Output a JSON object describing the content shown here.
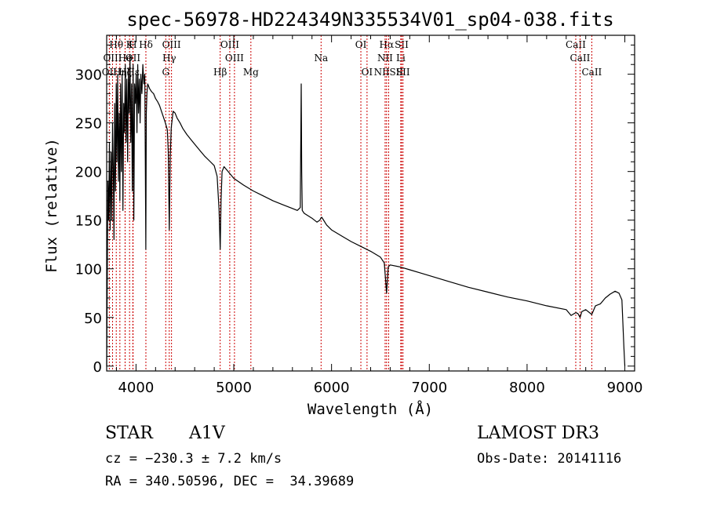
{
  "chart_data": {
    "type": "line",
    "title": "spec-56978-HD224349N335534V01_sp04-038.fits",
    "xlabel": "Wavelength (Å)",
    "ylabel": "Flux (relative)",
    "xlim": [
      3700,
      9100
    ],
    "ylim": [
      -5,
      340
    ],
    "xticks": [
      4000,
      5000,
      6000,
      7000,
      8000,
      9000
    ],
    "yticks": [
      0,
      50,
      100,
      150,
      200,
      250,
      300
    ],
    "grid": false,
    "series": [
      {
        "name": "flux",
        "x": [
          3700,
          3705,
          3712,
          3720,
          3728,
          3735,
          3745,
          3752,
          3760,
          3768,
          3775,
          3782,
          3790,
          3798,
          3805,
          3812,
          3820,
          3828,
          3835,
          3842,
          3850,
          3858,
          3866,
          3874,
          3882,
          3890,
          3898,
          3906,
          3914,
          3922,
          3930,
          3938,
          3946,
          3954,
          3962,
          3970,
          3978,
          3986,
          3994,
          4002,
          4010,
          4018,
          4026,
          4034,
          4042,
          4050,
          4060,
          4070,
          4080,
          4090,
          4100,
          4105,
          4112,
          4120,
          4140,
          4160,
          4180,
          4200,
          4220,
          4240,
          4260,
          4280,
          4300,
          4320,
          4330,
          4340,
          4350,
          4360,
          4380,
          4400,
          4420,
          4450,
          4480,
          4520,
          4560,
          4600,
          4650,
          4700,
          4750,
          4800,
          4830,
          4850,
          4861,
          4870,
          4880,
          4900,
          4950,
          5000,
          5100,
          5200,
          5300,
          5400,
          5500,
          5600,
          5650,
          5680,
          5690,
          5695,
          5700,
          5720,
          5800,
          5850,
          5880,
          5890,
          5900,
          5950,
          6000,
          6100,
          6200,
          6300,
          6400,
          6500,
          6540,
          6563,
          6580,
          6600,
          6700,
          6800,
          6900,
          7000,
          7200,
          7400,
          7600,
          7800,
          8000,
          8200,
          8400,
          8450,
          8498,
          8520,
          8542,
          8560,
          8600,
          8662,
          8700,
          8750,
          8800,
          8850,
          8900,
          8940,
          8970,
          8990,
          9000
        ],
        "values": [
          0,
          70,
          190,
          150,
          230,
          140,
          220,
          150,
          250,
          200,
          130,
          270,
          180,
          290,
          210,
          300,
          190,
          260,
          170,
          290,
          200,
          300,
          160,
          270,
          240,
          310,
          230,
          295,
          210,
          300,
          260,
          320,
          230,
          290,
          180,
          310,
          150,
          290,
          270,
          300,
          240,
          310,
          260,
          295,
          250,
          300,
          280,
          310,
          290,
          300,
          120,
          260,
          280,
          290,
          285,
          282,
          280,
          275,
          272,
          268,
          262,
          256,
          250,
          243,
          220,
          140,
          215,
          245,
          262,
          260,
          255,
          250,
          244,
          238,
          233,
          228,
          222,
          216,
          211,
          206,
          195,
          160,
          120,
          170,
          200,
          205,
          199,
          193,
          186,
          180,
          175,
          170,
          166,
          162,
          160,
          163,
          290,
          200,
          160,
          157,
          152,
          148,
          150,
          152,
          153,
          145,
          140,
          134,
          128,
          123,
          118,
          112,
          106,
          75,
          102,
          104,
          102,
          99,
          96,
          93,
          87,
          81,
          76,
          71,
          67,
          62,
          58,
          52,
          55,
          54,
          50,
          56,
          58,
          53,
          62,
          64,
          70,
          74,
          77,
          75,
          68,
          20,
          0
        ]
      }
    ],
    "lines": [
      {
        "name": "OII",
        "x": 3727,
        "row": 3
      },
      {
        "name": "Hθ",
        "x": 3798,
        "row": 1
      },
      {
        "name": "OIII",
        "x": 3760,
        "row": 2
      },
      {
        "name": "Hη",
        "x": 3835,
        "row": 3
      },
      {
        "name": "Hζ",
        "x": 3889,
        "row": 3
      },
      {
        "name": "He",
        "x": 3888,
        "row": 2
      },
      {
        "name": "K",
        "x": 3934,
        "row": 1
      },
      {
        "name": "Hε",
        "x": 3970,
        "row": 3
      },
      {
        "name": "H",
        "x": 3968,
        "row": 1
      },
      {
        "name": "OII",
        "x": 3968,
        "row": 2
      },
      {
        "name": "Hδ",
        "x": 4101,
        "row": 1
      },
      {
        "name": "OIII",
        "x": 4363,
        "row": 1
      },
      {
        "name": "Hγ",
        "x": 4340,
        "row": 2
      },
      {
        "name": "G",
        "x": 4304,
        "row": 3
      },
      {
        "name": "Hβ",
        "x": 4861,
        "row": 3
      },
      {
        "name": "OIII",
        "x": 4959,
        "row": 1
      },
      {
        "name": "OIII",
        "x": 5007,
        "row": 2
      },
      {
        "name": "Mg",
        "x": 5175,
        "row": 3
      },
      {
        "name": "Na",
        "x": 5893,
        "row": 2
      },
      {
        "name": "OI",
        "x": 6300,
        "row": 1
      },
      {
        "name": "OI",
        "x": 6363,
        "row": 3
      },
      {
        "name": "Hα",
        "x": 6563,
        "row": 1
      },
      {
        "name": "NII",
        "x": 6548,
        "row": 2
      },
      {
        "name": "Li",
        "x": 6708,
        "row": 2
      },
      {
        "name": "NIISII",
        "x": 6584,
        "row": 3
      },
      {
        "name": "SII",
        "x": 6717,
        "row": 1
      },
      {
        "name": "SII",
        "x": 6731,
        "row": 3
      },
      {
        "name": "CaII",
        "x": 8498,
        "row": 1
      },
      {
        "name": "CaII",
        "x": 8542,
        "row": 2
      },
      {
        "name": "CaII",
        "x": 8662,
        "row": 3
      }
    ]
  },
  "info": {
    "object_type": "STAR",
    "subclass": "A1V",
    "survey": "LAMOST DR3",
    "redshift": "cz = −230.3 ± 7.2 km/s",
    "obs_date": "Obs-Date: 20141116",
    "coords": "RA = 340.50596, DEC =  34.39689"
  }
}
